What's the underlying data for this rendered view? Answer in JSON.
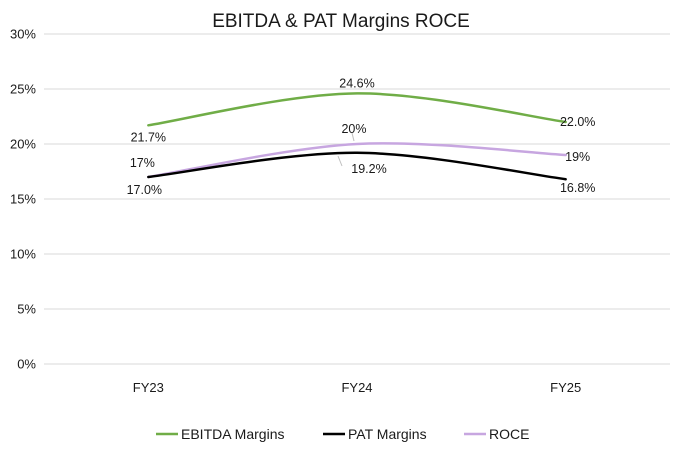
{
  "chart_data": {
    "type": "line",
    "title": "EBITDA & PAT Margins ROCE",
    "categories": [
      "FY23",
      "FY24",
      "FY25"
    ],
    "ylim": [
      0,
      30
    ],
    "yticks": [
      0,
      5,
      10,
      15,
      20,
      25,
      30
    ],
    "ytick_labels": [
      "0%",
      "5%",
      "10%",
      "15%",
      "20%",
      "25%",
      "30%"
    ],
    "grid": true,
    "legend_position": "bottom",
    "series": [
      {
        "name": "EBITDA Margins",
        "color": "#70ad47",
        "values": [
          21.7,
          24.6,
          22.0
        ],
        "labels": [
          "21.7%",
          "24.6%",
          "22.0%"
        ]
      },
      {
        "name": "PAT Margins",
        "color": "#000000",
        "values": [
          17.0,
          19.2,
          16.8
        ],
        "labels": [
          "17.0%",
          "19.2%",
          "16.8%"
        ]
      },
      {
        "name": "ROCE",
        "color": "#c7a6e0",
        "values": [
          17,
          20,
          19
        ],
        "labels": [
          "17%",
          "20%",
          "19%"
        ]
      }
    ]
  }
}
